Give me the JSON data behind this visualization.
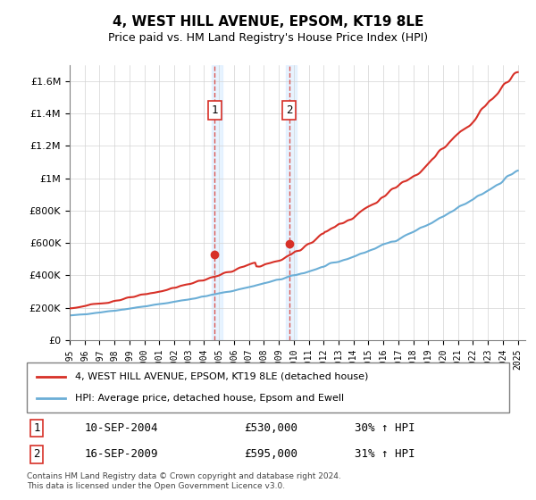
{
  "title": "4, WEST HILL AVENUE, EPSOM, KT19 8LE",
  "subtitle": "Price paid vs. HM Land Registry's House Price Index (HPI)",
  "legend_line1": "4, WEST HILL AVENUE, EPSOM, KT19 8LE (detached house)",
  "legend_line2": "HPI: Average price, detached house, Epsom and Ewell",
  "sale1_label": "1",
  "sale1_date": "10-SEP-2004",
  "sale1_price": "£530,000",
  "sale1_hpi": "30% ↑ HPI",
  "sale2_label": "2",
  "sale2_date": "16-SEP-2009",
  "sale2_price": "£595,000",
  "sale2_hpi": "31% ↑ HPI",
  "footnote": "Contains HM Land Registry data © Crown copyright and database right 2024.\nThis data is licensed under the Open Government Licence v3.0.",
  "hpi_color": "#6baed6",
  "price_color": "#d73027",
  "sale_marker_color": "#d73027",
  "highlight_color": "#ddeeff",
  "sale1_year": 2004.7,
  "sale2_year": 2009.7,
  "ylim_max": 1700000,
  "ylim_min": 0
}
